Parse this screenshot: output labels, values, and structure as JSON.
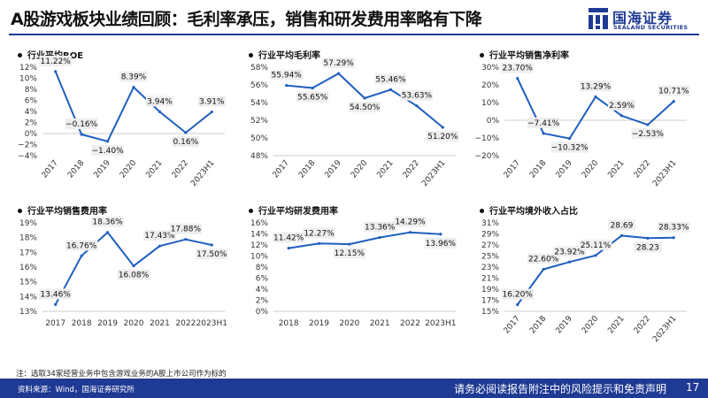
{
  "header": {
    "title": "A股游戏板块业绩回顾：毛利率承压，销售和研发费用率略有下降",
    "logo_cn": "国海证券",
    "logo_en": "SEALAND SECURITIES"
  },
  "colors": {
    "line": "#1f5fbf",
    "brand": "#1f3a93",
    "label_bg": "#eeeeee"
  },
  "footer": {
    "note": "注：选取34家经营业务中包含游戏业务的A股上市公司作为标的",
    "source": "资料来源：Wind，国海证券研究所",
    "disclaimer": "请务必阅读报告附注中的风险提示和免责声明",
    "page": "17"
  },
  "chart_data": [
    {
      "id": "roe",
      "type": "line",
      "title": "行业平均ROE",
      "categories": [
        "2017",
        "2018",
        "2019",
        "2020",
        "2021",
        "2022",
        "2023H1"
      ],
      "values": [
        11.22,
        -0.16,
        -1.4,
        8.39,
        3.94,
        0.16,
        3.91
      ],
      "labels": [
        "11.22%",
        "−0.16%",
        "−1.40%",
        "8.39%",
        "3.94%",
        "0.16%",
        "3.91%"
      ],
      "yticks": [
        "12%",
        "10%",
        "8%",
        "6%",
        "4%",
        "2%",
        "0%",
        "−2%",
        "−4%"
      ],
      "ylim": [
        -4,
        12
      ],
      "tick_step": 2,
      "rotate_x": true
    },
    {
      "id": "gross-margin",
      "type": "line",
      "title": "行业平均毛利率",
      "categories": [
        "2017",
        "2018",
        "2019",
        "2020",
        "2021",
        "2022",
        "2023H1"
      ],
      "values": [
        55.94,
        55.65,
        57.29,
        54.5,
        55.46,
        53.63,
        51.2
      ],
      "labels": [
        "55.94%",
        "55.65%",
        "57.29%",
        "54.50%",
        "55.46%",
        "53.63%",
        "51.20%"
      ],
      "yticks": [
        "58%",
        "56%",
        "54%",
        "52%",
        "50%",
        "48%"
      ],
      "ylim": [
        48,
        58
      ],
      "tick_step": 2,
      "rotate_x": true
    },
    {
      "id": "net-margin",
      "type": "line",
      "title": "行业平均销售净利率",
      "categories": [
        "2017",
        "2018",
        "2019",
        "2020",
        "2021",
        "2022",
        "2023H1"
      ],
      "values": [
        23.7,
        -7.41,
        -10.32,
        13.29,
        2.59,
        -2.53,
        10.71
      ],
      "labels": [
        "23.70%",
        "−7.41%",
        "−10.32%",
        "13.29%",
        "2.59%",
        "−2.53%",
        "10.71%"
      ],
      "yticks": [
        "30%",
        "20%",
        "10%",
        "0%",
        "−10%",
        "−20%"
      ],
      "ylim": [
        -20,
        30
      ],
      "tick_step": 10,
      "rotate_x": true
    },
    {
      "id": "selling-expense",
      "type": "line",
      "title": "行业平均销售费用率",
      "categories": [
        "2017",
        "2018",
        "2019",
        "2020",
        "2021",
        "2022",
        "2023H1"
      ],
      "values": [
        13.46,
        16.76,
        18.36,
        16.08,
        17.43,
        17.88,
        17.5
      ],
      "labels": [
        "13.46%",
        "16.76%",
        "18.36%",
        "16.08%",
        "17.43%",
        "17.88%",
        "17.50%"
      ],
      "yticks": [
        "19%",
        "18%",
        "17%",
        "16%",
        "15%",
        "14%",
        "13%"
      ],
      "ylim": [
        13,
        19
      ],
      "tick_step": 1,
      "rotate_x": false
    },
    {
      "id": "rd-expense",
      "type": "line",
      "title": "行业平均研发费用率",
      "categories": [
        "2018",
        "2019",
        "2020",
        "2021",
        "2022",
        "2023H1"
      ],
      "values": [
        11.42,
        12.27,
        12.15,
        13.36,
        14.29,
        13.96
      ],
      "labels": [
        "11.42%",
        "12.27%",
        "12.15%",
        "13.36%",
        "14.29%",
        "13.96%"
      ],
      "yticks": [
        "16%",
        "14%",
        "12%",
        "10%",
        "8%",
        "6%",
        "4%",
        "2%",
        "0%"
      ],
      "ylim": [
        0,
        16
      ],
      "tick_step": 2,
      "rotate_x": false
    },
    {
      "id": "overseas-share",
      "type": "line",
      "title": "行业平均境外收入占比",
      "categories": [
        "2017",
        "2018",
        "2019",
        "2020",
        "2021",
        "2022",
        "2023H1"
      ],
      "values": [
        16.2,
        22.6,
        23.92,
        25.11,
        28.69,
        28.23,
        28.33
      ],
      "labels": [
        "16.20%",
        "22.60%",
        "23.92%",
        "25.11%",
        "28.69",
        "28.23",
        "28.33%"
      ],
      "yticks": [
        "31%",
        "29%",
        "27%",
        "25%",
        "23%",
        "21%",
        "19%",
        "17%",
        "15%"
      ],
      "ylim": [
        15,
        31
      ],
      "tick_step": 2,
      "rotate_x": true
    }
  ]
}
